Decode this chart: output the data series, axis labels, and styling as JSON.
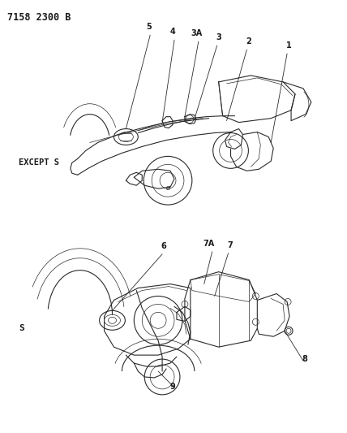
{
  "title": "7158 2300 B",
  "bg_color": "#ffffff",
  "text_color": "#1a1a1a",
  "line_color": "#2a2a2a",
  "label_top": "EXCEPT S",
  "label_bottom": "S",
  "figsize": [
    4.28,
    5.33
  ],
  "dpi": 100
}
